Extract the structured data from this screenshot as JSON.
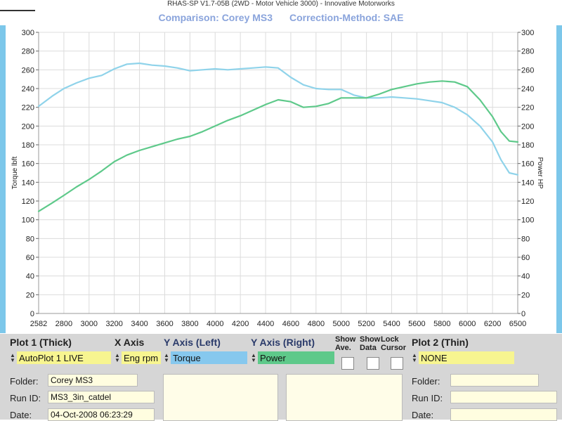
{
  "header": {
    "subtitle": "RHAS-SP V1.7-05B   (2WD - Motor Vehicle 3000) - Innovative Motorworks",
    "comparison": "Comparison: Corey MS3",
    "correction": "Correction-Method: SAE"
  },
  "chart_data": {
    "type": "line",
    "title": "",
    "xlabel": "",
    "ylabel": "Torque lbft",
    "ylabel_right": "Power HP",
    "xlim": [
      2582,
      6500
    ],
    "ylim": [
      0,
      300
    ],
    "y2lim": [
      0,
      300
    ],
    "x_ticks": [
      2582,
      2800,
      3000,
      3200,
      3400,
      3600,
      3800,
      4000,
      4200,
      4400,
      4600,
      4800,
      5000,
      5200,
      5400,
      5600,
      5800,
      6000,
      6200,
      6500
    ],
    "y_ticks": [
      0,
      20,
      40,
      60,
      80,
      100,
      120,
      140,
      160,
      180,
      200,
      220,
      240,
      260,
      280,
      300
    ],
    "grid": true,
    "series": [
      {
        "name": "Torque",
        "color": "#8fd3ea",
        "x": [
          2582,
          2700,
          2800,
          2900,
          3000,
          3100,
          3200,
          3300,
          3400,
          3500,
          3600,
          3700,
          3800,
          3900,
          4000,
          4100,
          4200,
          4300,
          4400,
          4500,
          4600,
          4700,
          4800,
          4900,
          5000,
          5100,
          5200,
          5300,
          5400,
          5500,
          5600,
          5700,
          5800,
          5900,
          6000,
          6100,
          6200,
          6300,
          6400,
          6500
        ],
        "values": [
          221,
          232,
          240,
          246,
          251,
          254,
          261,
          266,
          267,
          265,
          264,
          262,
          259,
          260,
          261,
          260,
          261,
          262,
          263,
          262,
          252,
          244,
          240,
          239,
          239,
          233,
          230,
          230,
          231,
          230,
          229,
          227,
          225,
          220,
          212,
          200,
          183,
          164,
          150,
          148
        ]
      },
      {
        "name": "Power",
        "color": "#5ec98a",
        "x": [
          2582,
          2700,
          2800,
          2900,
          3000,
          3100,
          3200,
          3300,
          3400,
          3500,
          3600,
          3700,
          3800,
          3900,
          4000,
          4100,
          4200,
          4300,
          4400,
          4500,
          4600,
          4700,
          4800,
          4900,
          5000,
          5100,
          5200,
          5300,
          5400,
          5500,
          5600,
          5700,
          5800,
          5900,
          6000,
          6100,
          6200,
          6300,
          6400,
          6500
        ],
        "values": [
          109,
          118,
          126,
          135,
          143,
          152,
          162,
          169,
          174,
          178,
          182,
          186,
          189,
          194,
          200,
          206,
          211,
          217,
          223,
          228,
          226,
          220,
          221,
          224,
          230,
          230,
          230,
          234,
          239,
          242,
          245,
          247,
          248,
          247,
          242,
          228,
          210,
          194,
          184,
          183
        ]
      }
    ]
  },
  "controls": {
    "plot1_label": "Plot 1 (Thick)",
    "plot1_value": "AutoPlot 1 LIVE",
    "xaxis_label": "X Axis",
    "xaxis_value": "Eng rpm",
    "yleft_label": "Y Axis (Left)",
    "yleft_value": "Torque",
    "yright_label": "Y Axis (Right)",
    "yright_value": "Power",
    "show_ave_label_1": "Show",
    "show_ave_label_2": "Ave.",
    "show_data_label_1": "Show",
    "show_data_label_2": "Data",
    "lock_cursor_label_1": "Lock",
    "lock_cursor_label_2": "Cursor",
    "plot2_label": "Plot 2 (Thin)",
    "plot2_value": "NONE",
    "arrow_up": "▲",
    "arrow_down": "▼"
  },
  "left_info": {
    "folder_label": "Folder:",
    "folder_value": "Corey MS3",
    "runid_label": "Run ID:",
    "runid_value": "MS3_3in_catdel",
    "date_label": "Date:",
    "date_value": "04-Oct-2008  06:23:29"
  },
  "right_info": {
    "folder_label": "Folder:",
    "folder_value": "",
    "runid_label": "Run ID:",
    "runid_value": "",
    "date_label": "Date:",
    "date_value": ""
  },
  "colors": {
    "plot1_bg": "#f7f590",
    "xaxis_bg": "#f7f590",
    "torque_bg": "#86c8ee",
    "power_bg": "#5ec98a",
    "plot2_bg": "#f7f590"
  }
}
